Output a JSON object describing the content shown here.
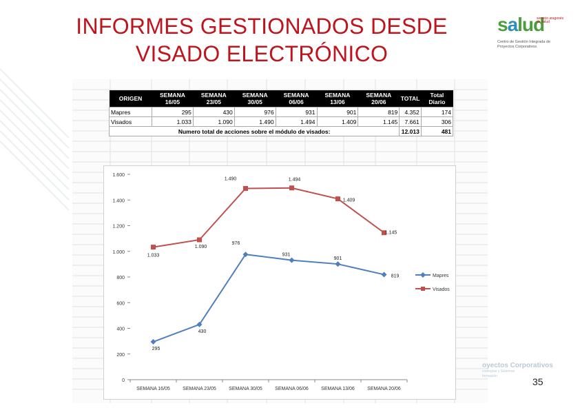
{
  "slide": {
    "title_line1": "INFORMES GESTIONADOS DESDE",
    "title_line2": "VISADO ELECTRÓNICO",
    "page_number": "35",
    "logo_word_s": "s",
    "logo_word_a": "a",
    "logo_word_rest": "lud",
    "logo_side": "servicio aragonés de salud",
    "logo_sub": "Centro de Gestión Integrada de Proyectos Corporativos",
    "footer_logo_title": "oyectos Corporativos",
    "footer_logo_sub1": "cnologías y Sistemas",
    "footer_logo_sub2": "formación"
  },
  "table": {
    "headers": [
      "ORIGEN",
      "SEMANA 16/05",
      "SEMANA 23/05",
      "SEMANA 30/05",
      "SEMANA 06/06",
      "SEMANA 13/06",
      "SEMANA 20/06",
      "TOTAL",
      "Total Diario"
    ],
    "rows": [
      {
        "label": "Mapres",
        "values": [
          "295",
          "430",
          "976",
          "931",
          "901",
          "819",
          "4.352",
          "174"
        ]
      },
      {
        "label": "Visados",
        "values": [
          "1.033",
          "1.090",
          "1.490",
          "1.494",
          "1.409",
          "1.145",
          "7.661",
          "306"
        ]
      }
    ],
    "total_label": "Numero total de acciones sobre el módulo de visados:",
    "total_value": "12.013",
    "total_daily": "481"
  },
  "chart_data": {
    "type": "line",
    "categories": [
      "SEMANA 16/05",
      "SEMANA 23/05",
      "SEMANA 30/05",
      "SEMANA 06/06",
      "SEMANA 13/06",
      "SEMANA 20/06"
    ],
    "series": [
      {
        "name": "Mapres",
        "values": [
          295,
          430,
          976,
          931,
          901,
          819
        ],
        "labels": [
          "295",
          "430",
          "976",
          "931",
          "901",
          "819"
        ],
        "color": "#4f7fbc",
        "marker": "diamond"
      },
      {
        "name": "Visados",
        "values": [
          1033,
          1090,
          1490,
          1494,
          1409,
          1145
        ],
        "labels": [
          "1.033",
          "1.090",
          "1.490",
          "1.494",
          "1.409",
          "1.145"
        ],
        "color": "#c0504d",
        "marker": "square"
      }
    ],
    "ylim": [
      0,
      1600
    ],
    "yticks": [
      0,
      200,
      400,
      600,
      800,
      1000,
      1200,
      1400,
      1600
    ],
    "ytick_labels": [
      "0",
      "200",
      "400",
      "600",
      "800",
      "1.000",
      "1.200",
      "1.400",
      "1.600"
    ],
    "legend": "right",
    "title": "",
    "xlabel": "",
    "ylabel": ""
  }
}
